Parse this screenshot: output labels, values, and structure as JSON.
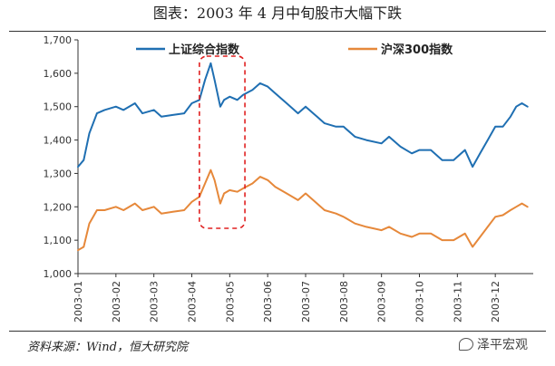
{
  "title": "图表：2003 年 4 月中旬股市大幅下跌",
  "source": "资料来源：Wind，恒大研究院",
  "watermark": "泽平宏观",
  "colors": {
    "series1": "#1f6fb2",
    "series2": "#e6883a",
    "highlight": "#e02020",
    "axis": "#333333"
  },
  "chart_data": {
    "type": "line",
    "title": "图表：2003 年 4 月中旬股市大幅下跌",
    "xlabel": "",
    "ylabel": "",
    "ylim": [
      1000,
      1700
    ],
    "yticks": [
      1000,
      1100,
      1200,
      1300,
      1400,
      1500,
      1600,
      1700
    ],
    "ytick_labels": [
      "1,000",
      "1,100",
      "1,200",
      "1,300",
      "1,400",
      "1,500",
      "1,600",
      "1,700"
    ],
    "xlim": [
      1,
      13
    ],
    "xticks": [
      1,
      2,
      3,
      4,
      5,
      6,
      7,
      8,
      9,
      10,
      11,
      12
    ],
    "xtick_labels": [
      "2003-01",
      "2003-02",
      "2003-03",
      "2003-04",
      "2003-05",
      "2003-06",
      "2003-07",
      "2003-08",
      "2003-09",
      "2003-10",
      "2003-11",
      "2003-12"
    ],
    "legend_position": "top",
    "highlight_range": [
      4.2,
      5.4
    ],
    "series": [
      {
        "name": "上证综合指数",
        "color": "#1f6fb2",
        "x": [
          1.0,
          1.15,
          1.3,
          1.5,
          1.7,
          2.0,
          2.2,
          2.5,
          2.7,
          3.0,
          3.2,
          3.5,
          3.8,
          4.0,
          4.2,
          4.35,
          4.5,
          4.6,
          4.75,
          4.85,
          5.0,
          5.2,
          5.35,
          5.6,
          5.8,
          6.0,
          6.2,
          6.5,
          6.8,
          7.0,
          7.3,
          7.5,
          7.8,
          8.0,
          8.3,
          8.6,
          9.0,
          9.2,
          9.5,
          9.8,
          10.0,
          10.3,
          10.6,
          10.9,
          11.2,
          11.4,
          11.6,
          11.8,
          12.0,
          12.2,
          12.4,
          12.55,
          12.7,
          12.85
        ],
        "y": [
          1320,
          1340,
          1420,
          1480,
          1490,
          1500,
          1490,
          1510,
          1480,
          1490,
          1470,
          1475,
          1480,
          1510,
          1520,
          1580,
          1630,
          1580,
          1500,
          1520,
          1530,
          1520,
          1535,
          1550,
          1570,
          1560,
          1540,
          1510,
          1480,
          1500,
          1470,
          1450,
          1440,
          1440,
          1410,
          1400,
          1390,
          1410,
          1380,
          1360,
          1370,
          1370,
          1340,
          1340,
          1370,
          1320,
          1360,
          1400,
          1440,
          1440,
          1470,
          1500,
          1510,
          1500
        ]
      },
      {
        "name": "沪深300指数",
        "color": "#e6883a",
        "x": [
          1.0,
          1.15,
          1.3,
          1.5,
          1.7,
          2.0,
          2.2,
          2.5,
          2.7,
          3.0,
          3.2,
          3.5,
          3.8,
          4.0,
          4.2,
          4.35,
          4.5,
          4.6,
          4.75,
          4.85,
          5.0,
          5.2,
          5.35,
          5.6,
          5.8,
          6.0,
          6.2,
          6.5,
          6.8,
          7.0,
          7.3,
          7.5,
          7.8,
          8.0,
          8.3,
          8.6,
          9.0,
          9.2,
          9.5,
          9.8,
          10.0,
          10.3,
          10.6,
          10.9,
          11.2,
          11.4,
          11.6,
          11.8,
          12.0,
          12.2,
          12.4,
          12.55,
          12.7,
          12.85
        ],
        "y": [
          1070,
          1080,
          1150,
          1190,
          1190,
          1200,
          1190,
          1210,
          1190,
          1200,
          1180,
          1185,
          1190,
          1215,
          1230,
          1270,
          1310,
          1280,
          1210,
          1240,
          1250,
          1245,
          1255,
          1270,
          1290,
          1280,
          1260,
          1240,
          1220,
          1240,
          1210,
          1190,
          1180,
          1170,
          1150,
          1140,
          1130,
          1140,
          1120,
          1110,
          1120,
          1120,
          1100,
          1100,
          1120,
          1080,
          1110,
          1140,
          1170,
          1175,
          1190,
          1200,
          1210,
          1200
        ]
      }
    ]
  }
}
